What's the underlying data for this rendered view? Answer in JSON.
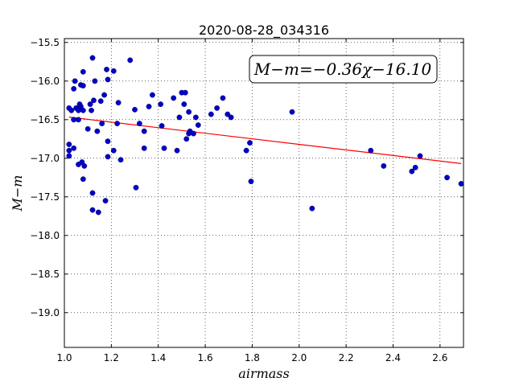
{
  "chart_data": {
    "type": "scatter",
    "title": "2020-08-28_034316",
    "xlabel": "airmass",
    "ylabel": "M−m",
    "xlim": [
      1.0,
      2.7
    ],
    "ylim": [
      -15.45,
      -19.45
    ],
    "y_inverted": true,
    "grid": true,
    "x_ticks": [
      1.0,
      1.2,
      1.4,
      1.6,
      1.8,
      2.0,
      2.2,
      2.4,
      2.6
    ],
    "x_tick_labels": [
      "1.0",
      "1.2",
      "1.4",
      "1.6",
      "1.8",
      "2.0",
      "2.2",
      "2.4",
      "2.6"
    ],
    "y_ticks": [
      -15.5,
      -16.0,
      -16.5,
      -17.0,
      -17.5,
      -18.0,
      -18.5,
      -19.0
    ],
    "y_tick_labels": [
      "−15.5",
      "−16.0",
      "−16.5",
      "−17.0",
      "−17.5",
      "−18.0",
      "−18.5",
      "−19.0"
    ],
    "annotation": "M−m=−0.36χ−16.10",
    "fit_line": {
      "slope": -0.36,
      "intercept": -16.1,
      "x_range": [
        1.02,
        2.69
      ],
      "color": "#ff0000"
    },
    "point_color": "#0000cc",
    "points": [
      [
        1.02,
        -16.35
      ],
      [
        1.02,
        -16.82
      ],
      [
        1.02,
        -16.9
      ],
      [
        1.02,
        -16.97
      ],
      [
        1.03,
        -16.38
      ],
      [
        1.04,
        -16.1
      ],
      [
        1.04,
        -16.5
      ],
      [
        1.04,
        -16.87
      ],
      [
        1.045,
        -16.0
      ],
      [
        1.05,
        -16.35
      ],
      [
        1.06,
        -16.38
      ],
      [
        1.06,
        -16.5
      ],
      [
        1.06,
        -17.08
      ],
      [
        1.065,
        -16.3
      ],
      [
        1.07,
        -16.33
      ],
      [
        1.07,
        -16.05
      ],
      [
        1.075,
        -17.05
      ],
      [
        1.08,
        -15.88
      ],
      [
        1.08,
        -16.06
      ],
      [
        1.08,
        -16.38
      ],
      [
        1.08,
        -17.27
      ],
      [
        1.085,
        -17.1
      ],
      [
        1.1,
        -16.62
      ],
      [
        1.11,
        -16.3
      ],
      [
        1.115,
        -16.38
      ],
      [
        1.12,
        -15.7
      ],
      [
        1.12,
        -17.45
      ],
      [
        1.12,
        -17.67
      ],
      [
        1.125,
        -16.25
      ],
      [
        1.13,
        -16.0
      ],
      [
        1.14,
        -16.65
      ],
      [
        1.145,
        -17.7
      ],
      [
        1.155,
        -16.26
      ],
      [
        1.16,
        -16.55
      ],
      [
        1.17,
        -16.18
      ],
      [
        1.175,
        -17.55
      ],
      [
        1.18,
        -15.85
      ],
      [
        1.185,
        -15.98
      ],
      [
        1.185,
        -16.78
      ],
      [
        1.185,
        -16.98
      ],
      [
        1.21,
        -15.87
      ],
      [
        1.21,
        -16.9
      ],
      [
        1.225,
        -16.55
      ],
      [
        1.23,
        -16.28
      ],
      [
        1.24,
        -17.02
      ],
      [
        1.28,
        -15.73
      ],
      [
        1.3,
        -16.37
      ],
      [
        1.305,
        -17.38
      ],
      [
        1.32,
        -16.55
      ],
      [
        1.34,
        -16.65
      ],
      [
        1.34,
        -16.87
      ],
      [
        1.36,
        -16.33
      ],
      [
        1.375,
        -16.18
      ],
      [
        1.41,
        -16.3
      ],
      [
        1.415,
        -16.58
      ],
      [
        1.425,
        -16.87
      ],
      [
        1.465,
        -16.22
      ],
      [
        1.48,
        -16.9
      ],
      [
        1.49,
        -16.47
      ],
      [
        1.5,
        -16.15
      ],
      [
        1.51,
        -16.3
      ],
      [
        1.515,
        -16.15
      ],
      [
        1.52,
        -16.75
      ],
      [
        1.53,
        -16.68
      ],
      [
        1.53,
        -16.4
      ],
      [
        1.535,
        -16.65
      ],
      [
        1.55,
        -16.68
      ],
      [
        1.56,
        -16.47
      ],
      [
        1.57,
        -16.57
      ],
      [
        1.625,
        -16.43
      ],
      [
        1.65,
        -16.35
      ],
      [
        1.675,
        -16.22
      ],
      [
        1.695,
        -16.43
      ],
      [
        1.71,
        -16.47
      ],
      [
        1.775,
        -16.9
      ],
      [
        1.79,
        -16.8
      ],
      [
        1.795,
        -17.3
      ],
      [
        1.97,
        -16.4
      ],
      [
        2.055,
        -17.65
      ],
      [
        2.305,
        -16.9
      ],
      [
        2.36,
        -17.1
      ],
      [
        2.48,
        -17.17
      ],
      [
        2.495,
        -17.12
      ],
      [
        2.515,
        -16.97
      ],
      [
        2.63,
        -17.25
      ],
      [
        2.69,
        -17.33
      ]
    ]
  }
}
